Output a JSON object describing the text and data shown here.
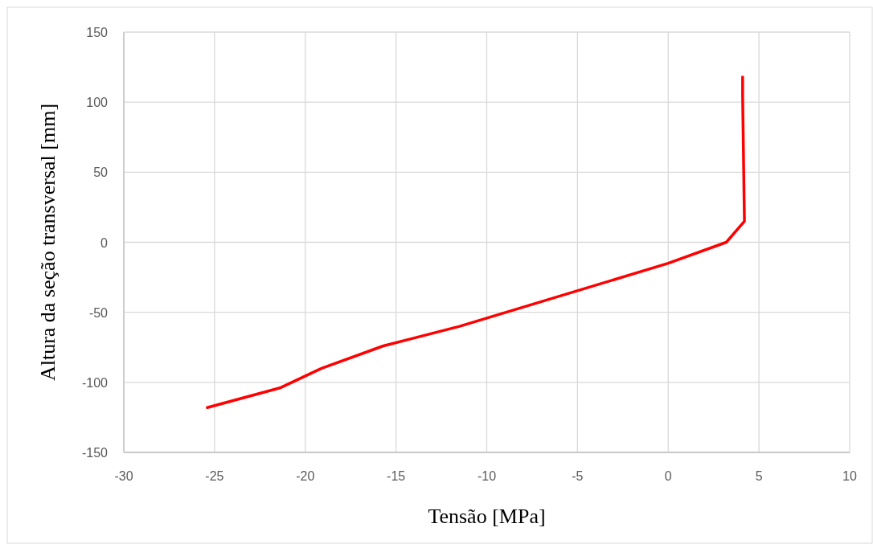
{
  "chart_data": {
    "type": "line",
    "xlabel": "Tensão [MPa]",
    "ylabel": "Altura da seção transversal [mm]",
    "x": [
      -25.4,
      -21.4,
      -19.1,
      -15.7,
      -11.5,
      0,
      3.2,
      4.2,
      4.1,
      4.1
    ],
    "series": [
      {
        "color": "#ff0000",
        "values": [
          -118,
          -104,
          -90,
          -74,
          -60,
          -15,
          0,
          15,
          105,
          118
        ]
      }
    ],
    "xlim": [
      -30,
      10
    ],
    "xticks": [
      -30,
      -25,
      -20,
      -15,
      -10,
      -5,
      0,
      5,
      10
    ],
    "ylim": [
      -150,
      150
    ],
    "yticks": [
      -150,
      -100,
      -50,
      0,
      50,
      100,
      150
    ],
    "grid": true,
    "marker": "none",
    "line_style": "solid"
  }
}
